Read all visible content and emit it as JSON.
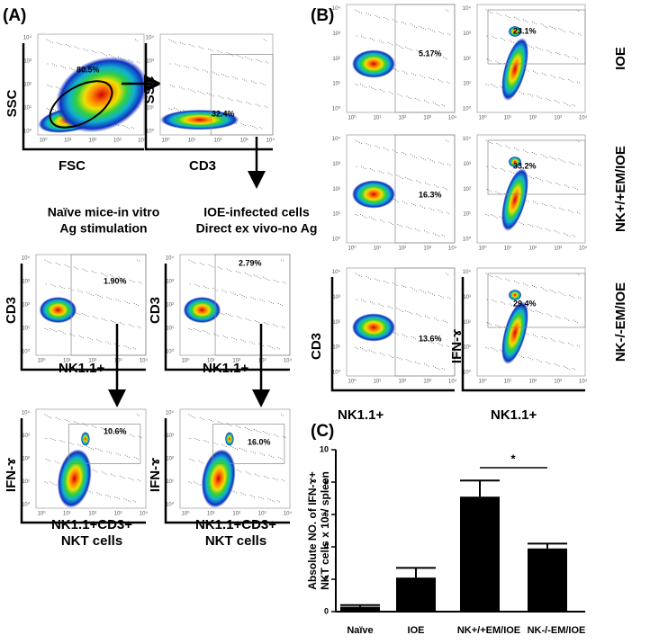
{
  "panels": {
    "a": {
      "label": "(A)",
      "plot1": {
        "pct": "80.5%",
        "x": "FSC",
        "y": "SSC"
      },
      "plot2": {
        "pct": "32.4%",
        "x": "CD3",
        "y": "SSC"
      },
      "left_heading": [
        "Naïve mice-in vitro",
        "Ag stimulation"
      ],
      "right_heading": [
        "IOE-infected cells",
        "Direct ex vivo-no Ag"
      ],
      "plot3": {
        "pct": "1.90%",
        "x": "NK1.1+",
        "y": "CD3"
      },
      "plot4": {
        "pct": "2.79%",
        "x": "NK1.1+",
        "y": "CD3"
      },
      "plot5": {
        "pct": "10.6%",
        "y": "IFN-ɤ"
      },
      "plot6": {
        "pct": "16.0%",
        "y": "IFN-ɤ"
      },
      "bottom_label": [
        "NK1.1+CD3+",
        "NKT cells"
      ]
    },
    "b": {
      "label": "(B)",
      "rows": [
        "IOE",
        "NK+/+EM/IOE",
        "NK-/-EM/IOE"
      ],
      "left_pcts": [
        "5.17%",
        "16.3%",
        "13.6%"
      ],
      "right_pcts": [
        "23.1%",
        "33.2%",
        "29.4%"
      ],
      "left_x": "NK1.1+",
      "left_y": "CD3",
      "right_x": "NK1.1+",
      "right_y": "IFN-ɤ"
    },
    "c": {
      "label": "(C)"
    },
    "flow_ticks": [
      "10⁰",
      "10¹",
      "10²",
      "10³",
      "10⁴"
    ]
  },
  "chart_data": {
    "type": "bar",
    "ylabel": [
      "Absolute NO. of IFN-ɤ+",
      "NKT cells x 10⁵/ spleen"
    ],
    "categories": [
      "Naïve",
      "IOE",
      "NK+/+EM/IOE",
      "NK-/-EM/IOE"
    ],
    "values": [
      0.3,
      2.1,
      7.1,
      3.9
    ],
    "errors": [
      0.1,
      0.6,
      1.0,
      0.3
    ],
    "color": "#000000",
    "ylim": [
      0,
      10
    ],
    "yticks": [
      0,
      2,
      4,
      6,
      8,
      10
    ],
    "annotation": "*"
  }
}
